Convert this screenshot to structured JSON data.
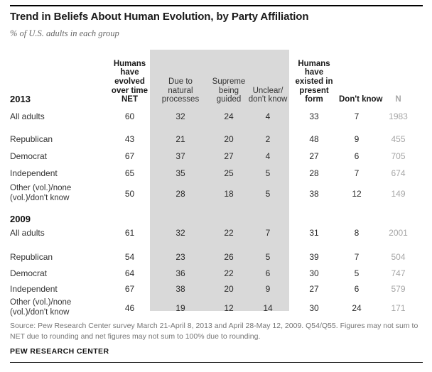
{
  "page": {
    "title": "Trend in Beliefs About Human Evolution, by Party Affiliation",
    "subtitle": "% of U.S. adults in each group",
    "source_note": "Source: Pew Research Center survey March 21-April 8, 2013 and April 28-May 12, 2009. Q54/Q55. Figures may not sum to NET due to rounding and net figures may not sum to 100% due to rounding.",
    "brand": "PEW RESEARCH CENTER"
  },
  "colors": {
    "shaded_band": "#d9d9d9",
    "muted_n_column": "#a6a6a6",
    "source_text": "#757575",
    "rule": "#000000"
  },
  "chart_data": {
    "type": "table",
    "title": "Trend in Beliefs About Human Evolution, by Party Affiliation",
    "subtitle": "% of U.S. adults in each group",
    "columns": [
      "Humans have evolved over time NET",
      "Due to natural processes",
      "Supreme being guided",
      "Unclear/don't know",
      "Humans have existed in present form",
      "Don't know",
      "N"
    ],
    "columns_display": [
      "Humans\nhave\nevolved\nover time\nNET",
      "Due to\nnatural\nprocesses",
      "Supreme\nbeing\nguided",
      "Unclear/\ndon't know",
      "Humans\nhave\nexisted in\npresent\nform",
      "Don't know",
      "N"
    ],
    "shaded_columns": [
      "Due to natural processes",
      "Supreme being guided",
      "Unclear/don't know"
    ],
    "sections": [
      {
        "year": "2013",
        "rows": [
          {
            "label": "All adults",
            "label_display": "All adults",
            "values": [
              60,
              32,
              24,
              4,
              33,
              7,
              1983
            ]
          },
          {
            "label": "Republican",
            "label_display": "Republican",
            "values": [
              43,
              21,
              20,
              2,
              48,
              9,
              455
            ]
          },
          {
            "label": "Democrat",
            "label_display": "Democrat",
            "values": [
              67,
              37,
              27,
              4,
              27,
              6,
              705
            ]
          },
          {
            "label": "Independent",
            "label_display": "Independent",
            "values": [
              65,
              35,
              25,
              5,
              28,
              7,
              674
            ]
          },
          {
            "label": "Other (vol.)/none (vol.)/don't know",
            "label_display": "Other (vol.)/none\n(vol.)/don't know",
            "values": [
              50,
              28,
              18,
              5,
              38,
              12,
              149
            ]
          }
        ]
      },
      {
        "year": "2009",
        "rows": [
          {
            "label": "All adults",
            "label_display": "All adults",
            "values": [
              61,
              32,
              22,
              7,
              31,
              8,
              2001
            ]
          },
          {
            "label": "Republican",
            "label_display": "Republican",
            "values": [
              54,
              23,
              26,
              5,
              39,
              7,
              504
            ]
          },
          {
            "label": "Democrat",
            "label_display": "Democrat",
            "values": [
              64,
              36,
              22,
              6,
              30,
              5,
              747
            ]
          },
          {
            "label": "Independent",
            "label_display": "Independent",
            "values": [
              67,
              38,
              20,
              9,
              27,
              6,
              579
            ]
          },
          {
            "label": "Other (vol.)/none (vol.)/don't know",
            "label_display": "Other (vol.)/none\n(vol.)/don't know",
            "values": [
              46,
              19,
              12,
              14,
              30,
              24,
              171
            ]
          }
        ]
      }
    ]
  }
}
